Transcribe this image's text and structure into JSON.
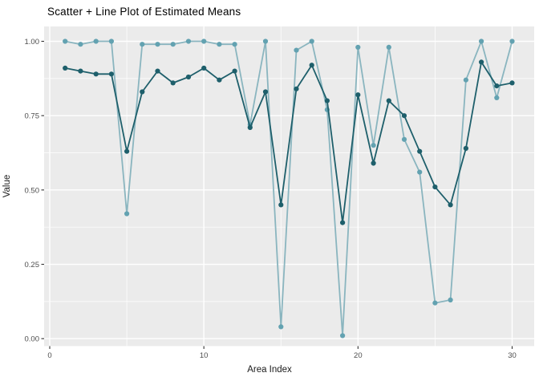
{
  "title": "Scatter + Line Plot of Estimated Means",
  "chart_data": {
    "type": "line",
    "title": "Scatter + Line Plot of Estimated Means",
    "xlabel": "Area Index",
    "ylabel": "Value",
    "x": [
      1,
      2,
      3,
      4,
      5,
      6,
      7,
      8,
      9,
      10,
      11,
      12,
      13,
      14,
      15,
      16,
      17,
      18,
      19,
      20,
      21,
      22,
      23,
      24,
      25,
      26,
      27,
      28,
      29,
      30
    ],
    "series": [
      {
        "name": "light_teal_series",
        "line_color": "#8ab5bf",
        "marker_color": "#63a2b1",
        "values": [
          1.0,
          0.99,
          1.0,
          1.0,
          0.42,
          0.99,
          0.99,
          0.99,
          1.0,
          1.0,
          0.99,
          0.99,
          0.72,
          1.0,
          0.04,
          0.97,
          1.0,
          0.77,
          0.01,
          0.98,
          0.65,
          0.98,
          0.67,
          0.56,
          0.12,
          0.13,
          0.87,
          1.0,
          0.81,
          1.0
        ]
      },
      {
        "name": "dark_teal_series",
        "line_color": "#1e5f6b",
        "marker_color": "#1e5f6b",
        "values": [
          0.91,
          0.9,
          0.89,
          0.89,
          0.63,
          0.83,
          0.9,
          0.86,
          0.88,
          0.91,
          0.87,
          0.9,
          0.71,
          0.83,
          0.45,
          0.84,
          0.92,
          0.8,
          0.39,
          0.82,
          0.59,
          0.8,
          0.75,
          0.63,
          0.51,
          0.45,
          0.64,
          0.93,
          0.85,
          0.86
        ]
      }
    ],
    "x_ticks": [
      {
        "label": "0",
        "value": 0
      },
      {
        "label": "10",
        "value": 10
      },
      {
        "label": "20",
        "value": 20
      },
      {
        "label": "30",
        "value": 30
      }
    ],
    "y_ticks": [
      {
        "label": "1.00",
        "value": 1.0
      },
      {
        "label": "0.75",
        "value": 0.75
      },
      {
        "label": "0.50",
        "value": 0.5
      },
      {
        "label": "0.25",
        "value": 0.25
      },
      {
        "label": "0.00",
        "value": 0.0
      }
    ],
    "x_minor": [
      5,
      15,
      25
    ],
    "y_minor": [
      0.875,
      0.625,
      0.375,
      0.125
    ],
    "xlim": [
      -0.36,
      31.43
    ],
    "ylim": [
      -0.02,
      1.05
    ],
    "grid": "on",
    "legend": "none",
    "colors": {
      "panel_bg": "#ebebeb",
      "grid": "#ffffff",
      "tick_marks": "#333333",
      "axis_text": "#4d4d4d",
      "title_text": "#000000"
    }
  }
}
